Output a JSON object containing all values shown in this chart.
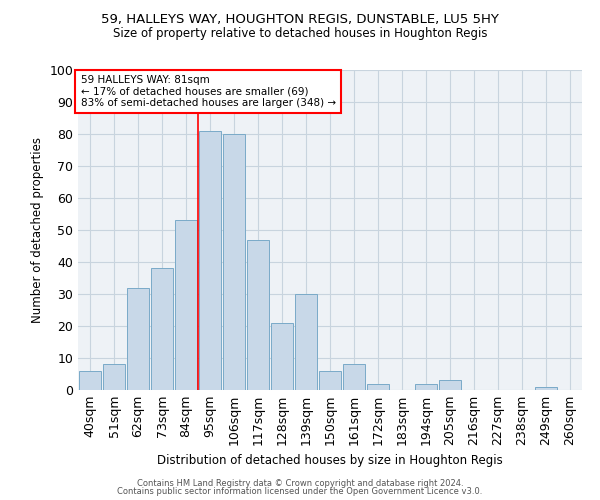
{
  "title1": "59, HALLEYS WAY, HOUGHTON REGIS, DUNSTABLE, LU5 5HY",
  "title2": "Size of property relative to detached houses in Houghton Regis",
  "xlabel": "Distribution of detached houses by size in Houghton Regis",
  "ylabel": "Number of detached properties",
  "categories": [
    "40sqm",
    "51sqm",
    "62sqm",
    "73sqm",
    "84sqm",
    "95sqm",
    "106sqm",
    "117sqm",
    "128sqm",
    "139sqm",
    "150sqm",
    "161sqm",
    "172sqm",
    "183sqm",
    "194sqm",
    "205sqm",
    "216sqm",
    "227sqm",
    "238sqm",
    "249sqm",
    "260sqm"
  ],
  "values": [
    6,
    8,
    32,
    38,
    53,
    81,
    80,
    47,
    21,
    30,
    6,
    8,
    2,
    0,
    2,
    3,
    0,
    0,
    0,
    1,
    0
  ],
  "bar_color": "#c8d8e8",
  "bar_edge_color": "#7aaac8",
  "grid_color": "#c8d4de",
  "background_color": "#eef2f6",
  "annotation_line1": "59 HALLEYS WAY: 81sqm",
  "annotation_line2": "← 17% of detached houses are smaller (69)",
  "annotation_line3": "83% of semi-detached houses are larger (348) →",
  "annotation_box_color": "white",
  "annotation_box_edge_color": "red",
  "vline_color": "red",
  "vline_x_index": 4.5,
  "ylim": [
    0,
    100
  ],
  "yticks": [
    0,
    10,
    20,
    30,
    40,
    50,
    60,
    70,
    80,
    90,
    100
  ],
  "footer1": "Contains HM Land Registry data © Crown copyright and database right 2024.",
  "footer2": "Contains public sector information licensed under the Open Government Licence v3.0."
}
